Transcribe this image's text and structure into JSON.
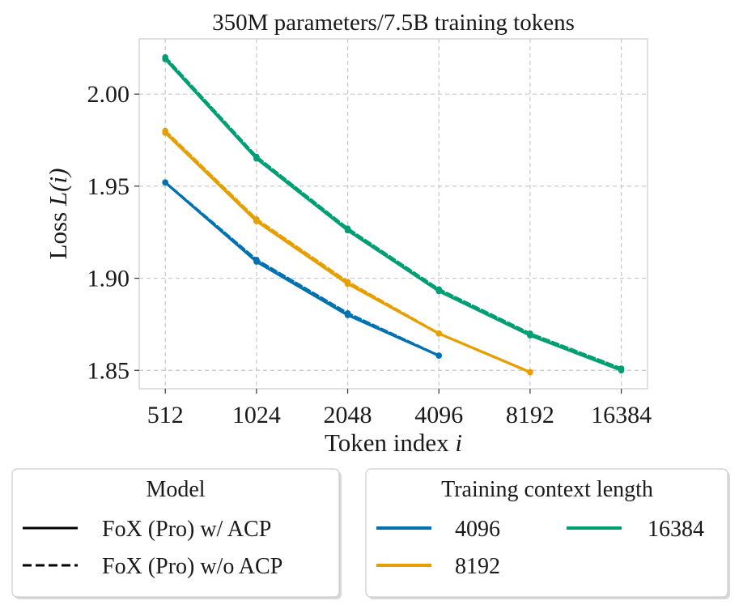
{
  "chart_data": {
    "type": "line",
    "title": "350M parameters/7.5B training tokens",
    "xlabel": "Token index i",
    "xlabel_text": "Token index ",
    "xlabel_var": "i",
    "ylabel": "Loss L(i)",
    "ylabel_text": "Loss ",
    "ylabel_var": "L(i)",
    "x_scale": "log2",
    "x_ticks": [
      512,
      1024,
      2048,
      4096,
      8192,
      16384
    ],
    "x_tick_labels": [
      "512",
      "1024",
      "2048",
      "4096",
      "8192",
      "16384"
    ],
    "y_ticks": [
      1.85,
      1.9,
      1.95,
      2.0
    ],
    "y_tick_labels": [
      "1.85",
      "1.90",
      "1.95",
      "2.00"
    ],
    "xlim": [
      420,
      20000
    ],
    "ylim": [
      1.84,
      2.03
    ],
    "grid": true,
    "series": [
      {
        "name": "4096",
        "variant": "FoX (Pro) w/ ACP",
        "color": "#0072b2",
        "dash": false,
        "x": [
          512,
          1024,
          2048,
          4096
        ],
        "y": [
          1.952,
          1.909,
          1.88,
          1.858
        ]
      },
      {
        "name": "4096",
        "variant": "FoX (Pro) w/o ACP",
        "color": "#0072b2",
        "dash": true,
        "x": [
          512,
          1024,
          2048,
          4096
        ],
        "y": [
          1.952,
          1.91,
          1.881,
          1.858
        ]
      },
      {
        "name": "8192",
        "variant": "FoX (Pro) w/ ACP",
        "color": "#e69f00",
        "dash": false,
        "x": [
          512,
          1024,
          2048,
          4096,
          8192
        ],
        "y": [
          1.979,
          1.931,
          1.897,
          1.87,
          1.849
        ]
      },
      {
        "name": "8192",
        "variant": "FoX (Pro) w/o ACP",
        "color": "#e69f00",
        "dash": true,
        "x": [
          512,
          1024,
          2048,
          4096,
          8192
        ],
        "y": [
          1.98,
          1.932,
          1.898,
          1.87,
          1.849
        ]
      },
      {
        "name": "16384",
        "variant": "FoX (Pro) w/ ACP",
        "color": "#009e73",
        "dash": false,
        "x": [
          512,
          1024,
          2048,
          4096,
          8192,
          16384
        ],
        "y": [
          2.019,
          1.965,
          1.926,
          1.893,
          1.869,
          1.85
        ]
      },
      {
        "name": "16384",
        "variant": "FoX (Pro) w/o ACP",
        "color": "#009e73",
        "dash": true,
        "x": [
          512,
          1024,
          2048,
          4096,
          8192,
          16384
        ],
        "y": [
          2.02,
          1.966,
          1.927,
          1.894,
          1.87,
          1.851
        ]
      }
    ],
    "legends": [
      {
        "title": "Model",
        "placement": "bottom-left",
        "entries": [
          {
            "label": "FoX (Pro) w/ ACP",
            "style": "solid",
            "color": "#000000"
          },
          {
            "label": "FoX (Pro) w/o ACP",
            "style": "dashed",
            "color": "#000000"
          }
        ]
      },
      {
        "title": "Training context length",
        "placement": "bottom-right",
        "entries": [
          {
            "label": "4096",
            "color": "#0072b2"
          },
          {
            "label": "8192",
            "color": "#e69f00"
          },
          {
            "label": "16384",
            "color": "#009e73"
          }
        ]
      }
    ]
  }
}
